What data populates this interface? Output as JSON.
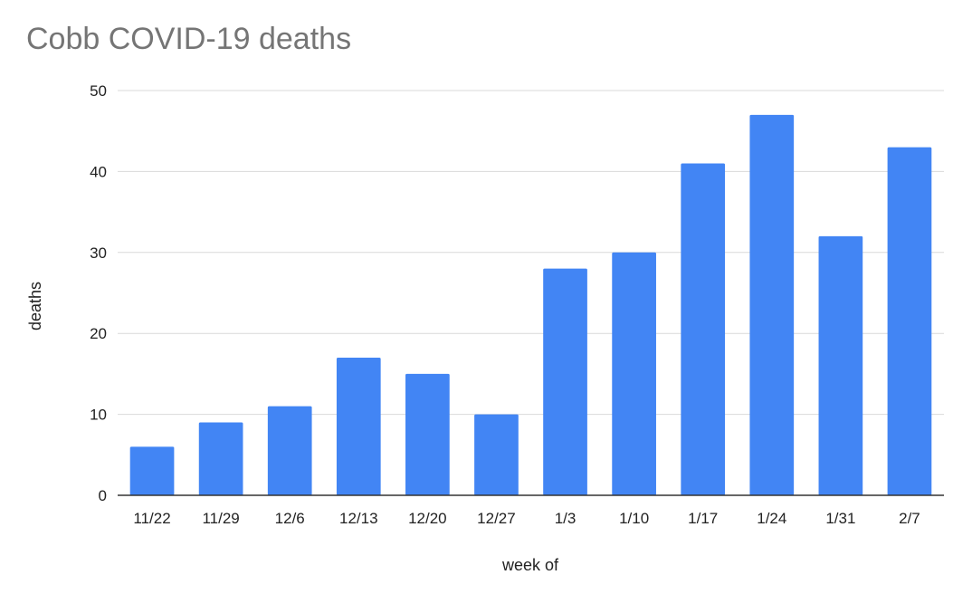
{
  "chart_data": {
    "type": "bar",
    "title": "Cobb COVID-19 deaths",
    "xlabel": "week of",
    "ylabel": "deaths",
    "categories": [
      "11/22",
      "11/29",
      "12/6",
      "12/13",
      "12/20",
      "12/27",
      "1/3",
      "1/10",
      "1/17",
      "1/24",
      "1/31",
      "2/7"
    ],
    "values": [
      6,
      9,
      11,
      17,
      15,
      10,
      28,
      30,
      41,
      47,
      32,
      43
    ],
    "ylim": [
      0,
      50
    ],
    "yticks": [
      0,
      10,
      20,
      30,
      40,
      50
    ],
    "grid": true,
    "legend": "none",
    "colors": {
      "bar": "#4285f4",
      "grid": "#d9d9d9",
      "axis": "#333333",
      "text": "#222222",
      "title": "#757575"
    }
  }
}
